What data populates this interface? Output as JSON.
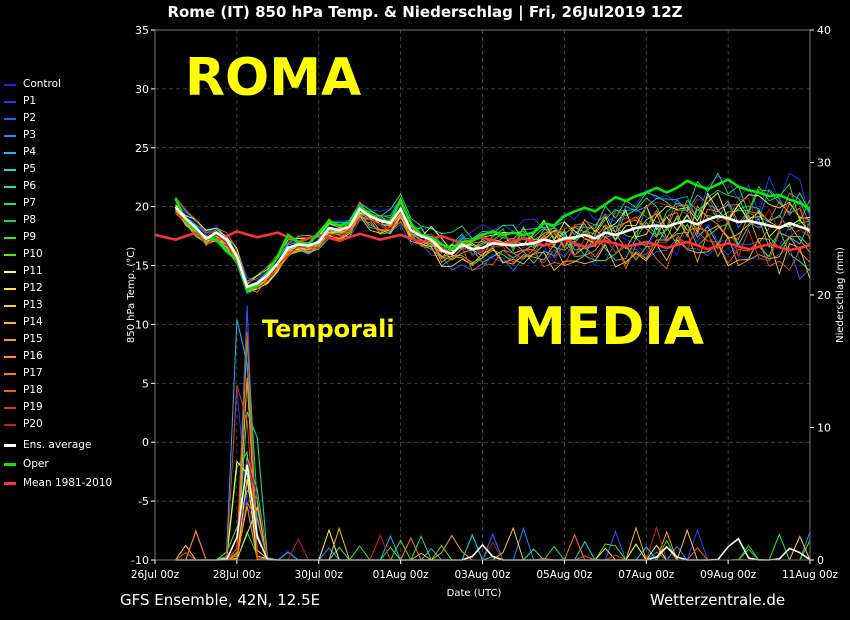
{
  "chart_data": {
    "type": "line",
    "title": "Rome  (IT)  850 hPa Temp. & Niederschlag | Fri, 26Jul2019 12Z",
    "xlabel": "Date (UTC)",
    "ylabel": "850 hPa Temp. (°C)",
    "y2label": "Niederschlag (mm)",
    "ylim": [
      -10,
      35
    ],
    "y2lim": [
      0,
      40
    ],
    "yticks": [
      -10,
      -5,
      0,
      5,
      10,
      15,
      20,
      25,
      30,
      35
    ],
    "y2ticks": [
      0,
      10,
      20,
      30,
      40
    ],
    "x_range_hours": [
      0,
      384
    ],
    "xticks": [
      {
        "hour": 0,
        "label": "26Jul 00z"
      },
      {
        "hour": 48,
        "label": "28Jul 00z"
      },
      {
        "hour": 96,
        "label": "30Jul 00z"
      },
      {
        "hour": 144,
        "label": "01Aug 00z"
      },
      {
        "hour": 192,
        "label": "03Aug 00z"
      },
      {
        "hour": 240,
        "label": "05Aug 00z"
      },
      {
        "hour": 288,
        "label": "07Aug 00z"
      },
      {
        "hour": 336,
        "label": "09Aug 00z"
      },
      {
        "hour": 384,
        "label": "11Aug 00z"
      }
    ],
    "x_unit": "hours since 26Jul 00z",
    "grid": true,
    "legend_position": "left",
    "annotations": [
      "ROMA",
      "Temporali",
      "MEDIA"
    ],
    "ens_average": {
      "name": "Ens. average",
      "color": "#ffffff",
      "x": [
        12,
        18,
        24,
        30,
        36,
        42,
        48,
        54,
        60,
        66,
        72,
        78,
        84,
        90,
        96,
        102,
        108,
        114,
        120,
        126,
        132,
        138,
        144,
        150,
        156,
        162,
        168,
        174,
        180,
        186,
        192,
        198,
        204,
        210,
        216,
        222,
        228,
        234,
        240,
        246,
        252,
        258,
        264,
        270,
        276,
        282,
        288,
        294,
        300,
        306,
        312,
        318,
        324,
        330,
        336,
        342,
        348,
        354,
        360,
        366,
        372,
        378,
        384
      ],
      "y": [
        20.0,
        19.0,
        18.2,
        17.3,
        17.8,
        17.2,
        15.8,
        13.2,
        13.5,
        14.2,
        15.2,
        16.5,
        16.8,
        16.7,
        17.0,
        18.2,
        18.0,
        18.3,
        19.8,
        19.2,
        18.8,
        18.6,
        19.8,
        18.0,
        17.5,
        17.2,
        16.3,
        16.0,
        16.8,
        16.4,
        16.5,
        16.9,
        16.8,
        16.7,
        16.8,
        16.9,
        17.2,
        17.0,
        17.3,
        17.4,
        17.6,
        17.3,
        17.8,
        17.6,
        17.9,
        18.2,
        18.3,
        18.4,
        18.3,
        18.6,
        18.8,
        18.5,
        18.9,
        19.2,
        19.0,
        18.7,
        18.8,
        18.6,
        18.4,
        18.2,
        18.6,
        18.3,
        18.0
      ]
    },
    "oper": {
      "name": "Oper",
      "color": "#00ee00",
      "x": [
        12,
        18,
        24,
        30,
        36,
        42,
        48,
        54,
        60,
        66,
        72,
        78,
        84,
        90,
        96,
        102,
        108,
        114,
        120,
        126,
        132,
        138,
        144,
        150,
        156,
        162,
        168,
        174,
        180,
        186,
        192,
        198,
        204,
        210,
        216,
        222,
        228,
        234,
        240,
        246,
        252,
        258,
        264,
        270,
        276,
        282,
        288,
        294,
        300,
        306,
        312,
        318,
        324,
        330,
        336,
        342,
        348,
        354,
        360,
        366,
        372,
        378,
        384
      ],
      "y": [
        20.7,
        18.8,
        18.0,
        17.4,
        17.2,
        16.2,
        15.5,
        12.9,
        13.3,
        14.4,
        15.8,
        17.6,
        17.0,
        16.8,
        17.8,
        18.8,
        18.4,
        18.6,
        20.0,
        19.4,
        18.8,
        18.8,
        20.5,
        18.6,
        17.6,
        17.4,
        16.8,
        16.4,
        17.0,
        17.1,
        17.6,
        17.9,
        17.6,
        17.8,
        17.6,
        17.8,
        18.6,
        18.4,
        19.2,
        19.6,
        19.9,
        19.6,
        20.2,
        20.8,
        20.5,
        20.9,
        21.2,
        21.6,
        21.2,
        21.6,
        22.2,
        21.8,
        21.5,
        21.9,
        22.3,
        21.7,
        21.4,
        21.2,
        20.9,
        21.0,
        20.6,
        20.3,
        19.8
      ]
    },
    "climate_mean": {
      "name": "Mean 1981-2010",
      "color": "#ff3333",
      "x": [
        0,
        12,
        24,
        36,
        48,
        60,
        72,
        84,
        96,
        108,
        120,
        132,
        144,
        156,
        168,
        180,
        192,
        204,
        216,
        228,
        240,
        252,
        264,
        276,
        288,
        300,
        312,
        324,
        336,
        348,
        360,
        372,
        384
      ],
      "y": [
        17.6,
        17.2,
        17.8,
        17.1,
        17.9,
        17.4,
        17.8,
        17.0,
        17.6,
        17.1,
        17.7,
        17.2,
        17.6,
        17.0,
        17.5,
        16.9,
        17.4,
        16.8,
        17.3,
        16.7,
        17.2,
        16.6,
        17.1,
        16.6,
        17.0,
        16.5,
        17.0,
        16.4,
        16.9,
        16.4,
        16.8,
        16.3,
        16.7
      ]
    },
    "members": [
      {
        "name": "Control",
        "color": "#2020ff"
      },
      {
        "name": "P1",
        "color": "#1e3cff"
      },
      {
        "name": "P2",
        "color": "#1e64ff"
      },
      {
        "name": "P3",
        "color": "#1e8cff"
      },
      {
        "name": "P4",
        "color": "#1eb4ff"
      },
      {
        "name": "P5",
        "color": "#14dcdc"
      },
      {
        "name": "P6",
        "color": "#14e6a0"
      },
      {
        "name": "P7",
        "color": "#14e678"
      },
      {
        "name": "P8",
        "color": "#14dc50"
      },
      {
        "name": "P9",
        "color": "#28f028"
      },
      {
        "name": "P10",
        "color": "#50e614"
      },
      {
        "name": "P11",
        "color": "#ffff32"
      },
      {
        "name": "P12",
        "color": "#ffe632"
      },
      {
        "name": "P13",
        "color": "#ffc832"
      },
      {
        "name": "P14",
        "color": "#ffb428"
      },
      {
        "name": "P15",
        "color": "#ffa014"
      },
      {
        "name": "P16",
        "color": "#ff8c14"
      },
      {
        "name": "P17",
        "color": "#ff7814"
      },
      {
        "name": "P18",
        "color": "#f05a14"
      },
      {
        "name": "P19",
        "color": "#dc3c14"
      },
      {
        "name": "P20",
        "color": "#c81e14"
      }
    ],
    "precip_peaks_mm": [
      {
        "hour": 54,
        "value": 16
      },
      {
        "hour": 192,
        "value": 2.5
      },
      {
        "hour": 300,
        "value": 2.2
      },
      {
        "hour": 340,
        "value": 4.2
      },
      {
        "hour": 374,
        "value": 2.3
      }
    ]
  },
  "legend": [
    {
      "label": "Control",
      "color": "#2020ff"
    },
    {
      "label": "P1",
      "color": "#1e3cff"
    },
    {
      "label": "P2",
      "color": "#1e64ff"
    },
    {
      "label": "P3",
      "color": "#1e8cff"
    },
    {
      "label": "P4",
      "color": "#1eb4ff"
    },
    {
      "label": "P5",
      "color": "#14dcdc"
    },
    {
      "label": "P6",
      "color": "#14e6a0"
    },
    {
      "label": "P7",
      "color": "#14e678"
    },
    {
      "label": "P8",
      "color": "#14dc50"
    },
    {
      "label": "P9",
      "color": "#28f028"
    },
    {
      "label": "P10",
      "color": "#50e614"
    },
    {
      "label": "P11",
      "color": "#ffff32"
    },
    {
      "label": "P12",
      "color": "#ffe632"
    },
    {
      "label": "P13",
      "color": "#ffc832"
    },
    {
      "label": "P14",
      "color": "#ffb428"
    },
    {
      "label": "P15",
      "color": "#ffa014"
    },
    {
      "label": "P16",
      "color": "#ff8c14"
    },
    {
      "label": "P17",
      "color": "#ff7814"
    },
    {
      "label": "P18",
      "color": "#f05a14"
    },
    {
      "label": "P19",
      "color": "#dc3c14"
    },
    {
      "label": "P20",
      "color": "#c81e14"
    },
    {
      "label": "Ens. average",
      "color": "#ffffff"
    },
    {
      "label": "Oper",
      "color": "#00ee00"
    },
    {
      "label": "Mean 1981-2010",
      "color": "#ff3333"
    }
  ],
  "footer": {
    "left": "GFS Ensemble, 42N, 12.5E",
    "right": "Wetterzentrale.de"
  }
}
